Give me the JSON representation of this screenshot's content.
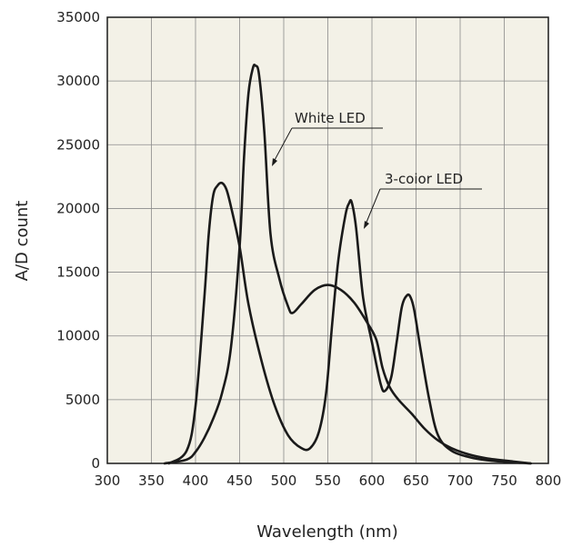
{
  "chart_data": {
    "type": "line",
    "title": "",
    "xlabel": "Wavelength (nm)",
    "ylabel": "A/D count",
    "xlim": [
      300,
      800
    ],
    "ylim": [
      0,
      35000
    ],
    "x_ticks": [
      300,
      350,
      400,
      450,
      500,
      550,
      600,
      650,
      700,
      750,
      800
    ],
    "y_ticks": [
      0,
      5000,
      10000,
      15000,
      20000,
      25000,
      30000,
      35000
    ],
    "grid": true,
    "plot_background": "#f3f1e7",
    "line_color": "#1a1a1a",
    "series": [
      {
        "name": "White LED",
        "x": [
          365,
          390,
          400,
          410,
          420,
          430,
          440,
          450,
          455,
          460,
          465,
          468,
          472,
          478,
          485,
          495,
          505,
          510,
          520,
          535,
          550,
          565,
          580,
          595,
          605,
          612,
          620,
          630,
          645,
          660,
          675,
          690,
          710,
          730,
          760,
          780
        ],
        "y": [
          0,
          300,
          900,
          2000,
          3500,
          5500,
          9000,
          17000,
          24000,
          29000,
          31000,
          31200,
          30500,
          26000,
          18000,
          14500,
          12300,
          11800,
          12500,
          13600,
          14000,
          13600,
          12600,
          11000,
          9700,
          7500,
          6000,
          5000,
          3900,
          2700,
          1800,
          1200,
          700,
          400,
          150,
          0
        ]
      },
      {
        "name": "3-coior LED",
        "x": [
          370,
          390,
          400,
          410,
          415,
          420,
          425,
          430,
          435,
          440,
          450,
          460,
          475,
          490,
          505,
          520,
          530,
          540,
          548,
          555,
          562,
          570,
          574,
          577,
          582,
          590,
          600,
          610,
          615,
          622,
          628,
          634,
          640,
          644,
          648,
          655,
          665,
          675,
          690,
          710,
          730,
          760,
          780
        ],
        "y": [
          0,
          1000,
          4500,
          13000,
          18000,
          21000,
          21800,
          22000,
          21500,
          20200,
          17000,
          12500,
          8000,
          4500,
          2200,
          1200,
          1200,
          2500,
          5500,
          11000,
          16000,
          19500,
          20400,
          20500,
          18500,
          13000,
          9500,
          6200,
          5700,
          6800,
          9500,
          12300,
          13200,
          13000,
          12000,
          9000,
          5000,
          2200,
          1000,
          500,
          250,
          80,
          0
        ]
      }
    ],
    "annotations": [
      {
        "text": "White LED"
      },
      {
        "text": "3-coior LED"
      }
    ]
  }
}
